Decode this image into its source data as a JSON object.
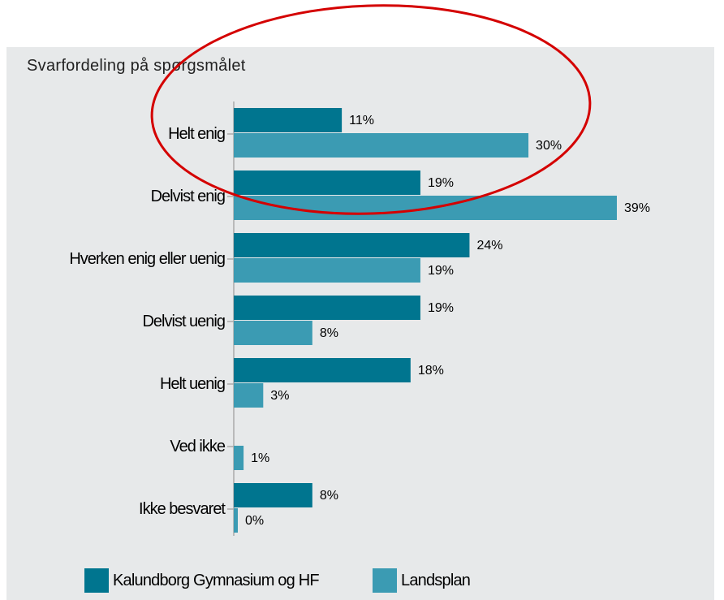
{
  "chart_data": {
    "type": "bar",
    "orientation": "horizontal",
    "title": "Svarfordeling på spørgsmålet",
    "categories": [
      "Helt enig",
      "Delvist enig",
      "Hverken enig eller uenig",
      "Delvist uenig",
      "Helt uenig",
      "Ved ikke",
      "Ikke besvaret"
    ],
    "series": [
      {
        "name": "Kalundborg Gymnasium og HF",
        "color": "#00758f",
        "values": [
          11,
          19,
          24,
          19,
          18,
          null,
          8
        ],
        "value_labels": [
          "11%",
          "19%",
          "24%",
          "19%",
          "18%",
          null,
          "8%"
        ]
      },
      {
        "name": "Landsplan",
        "color": "#3b9bb3",
        "values": [
          30,
          39,
          19,
          8,
          3,
          1,
          0
        ],
        "value_labels": [
          "30%",
          "39%",
          "19%",
          "8%",
          "3%",
          "1%",
          "0%"
        ]
      }
    ],
    "xlim": [
      0,
      49
    ]
  }
}
